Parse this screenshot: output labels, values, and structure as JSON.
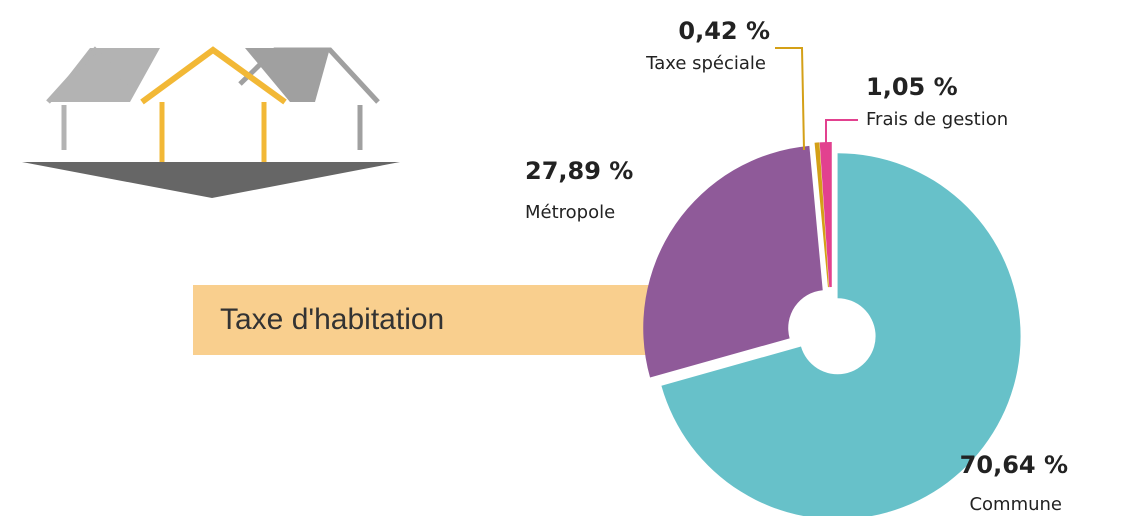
{
  "chart_data": {
    "type": "pie",
    "title": "Taxe d'habitation",
    "categories": [
      "Commune",
      "Métropole",
      "Taxe spéciale",
      "Frais de gestion"
    ],
    "values": [
      70.64,
      27.89,
      0.42,
      1.05
    ],
    "value_labels": [
      "70,64 %",
      "27,89 %",
      "0,42 %",
      "1,05 %"
    ],
    "colors": [
      "#67c1c9",
      "#8f5a99",
      "#d4a017",
      "#e2418f"
    ]
  }
}
